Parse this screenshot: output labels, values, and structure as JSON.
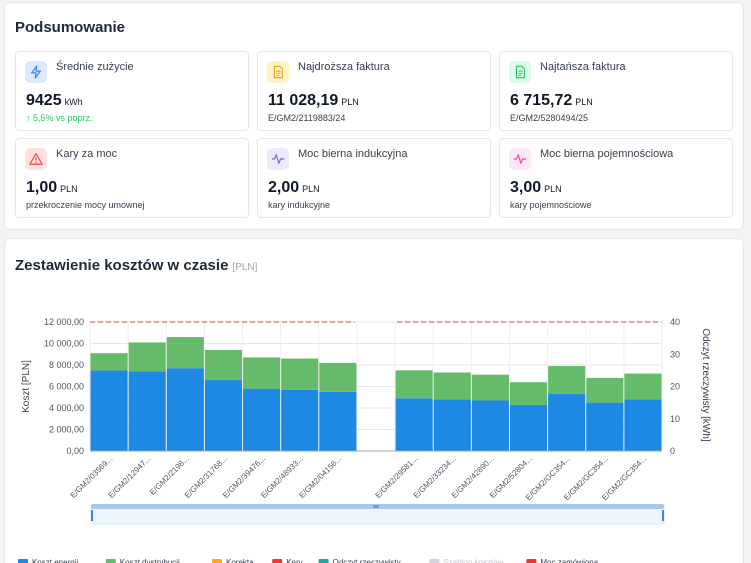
{
  "summary": {
    "title": "Podsumowanie",
    "cards": [
      {
        "label": "Średnie zużycie",
        "value": "9425",
        "unit": "kWh",
        "sub": "↑ 5,5% vs poprz.",
        "icon": "lightning-icon",
        "color": "#3b82f6",
        "bg": "#dbeafe"
      },
      {
        "label": "Najdroższa faktura",
        "value": "11 028,19",
        "unit": "PLN",
        "sub": "E/GM2/2119883/24",
        "icon": "document-icon",
        "color": "#f59e0b",
        "bg": "#fef3c7"
      },
      {
        "label": "Najtańsza faktura",
        "value": "6 715,72",
        "unit": "PLN",
        "sub": "E/GM2/5280494/25",
        "icon": "document-icon",
        "color": "#22c55e",
        "bg": "#dcfce7"
      },
      {
        "label": "Kary za moc",
        "value": "1,00",
        "unit": "PLN",
        "sub": "przekroczenie mocy umownej",
        "icon": "warning-icon",
        "color": "#ef4444",
        "bg": "#fee2e2"
      },
      {
        "label": "Moc bierna indukcyjna",
        "value": "2,00",
        "unit": "PLN",
        "sub": "kary indukcyjne",
        "icon": "pulse-icon",
        "color": "#8b5cf6",
        "bg": "#ede9fe"
      },
      {
        "label": "Moc bierna pojemnościowa",
        "value": "3,00",
        "unit": "PLN",
        "sub": "kary pojemnościowe",
        "icon": "pulse-icon",
        "color": "#ec4899",
        "bg": "#fce7f3"
      }
    ]
  },
  "chart_panel": {
    "title": "Zestawienie kosztów w czasie",
    "unit_tag": "[PLN]"
  },
  "chart_data": {
    "type": "bar",
    "categories": [
      "E/GM2/03569...",
      "E/GM2/12947...",
      "E/GM2/2198...",
      "E/GM2/31768...",
      "E/GM2/39476...",
      "E/GM2/48933...",
      "E/GM2/04156...",
      "",
      "E/GM2/29581...",
      "E/GM2/33234...",
      "E/GM2/42890...",
      "E/GM2/52804...",
      "E/GM2/GC354...",
      "E/GM2/GC354...",
      "E/GM2/GC354..."
    ],
    "series": [
      {
        "name": "Koszt energii",
        "color": "#1e88e5",
        "values": [
          7500,
          7400,
          7700,
          6600,
          5800,
          5700,
          5500,
          0,
          4900,
          4800,
          4700,
          4300,
          5300,
          4500,
          4800
        ]
      },
      {
        "name": "Koszt dystrybucji",
        "color": "#66bb6a",
        "values": [
          1600,
          2700,
          2900,
          2800,
          2900,
          2900,
          2700,
          0,
          2600,
          2500,
          2400,
          2100,
          2600,
          2300,
          2400
        ]
      }
    ],
    "contracted_power": {
      "name": "Moc zamówiona",
      "color": "#e53935",
      "value": 12000
    },
    "ylabel": "Koszt [PLN]",
    "y2label": "Odczyt rzeczywisty [kWh]",
    "ylim": [
      0,
      12000
    ],
    "yticks": [
      "0,00",
      "2 000,00",
      "4 000,00",
      "6 000,00",
      "8 000,00",
      "10 000,00",
      "12 000,00"
    ],
    "y2lim": [
      0,
      40
    ],
    "y2ticks": [
      "0",
      "10",
      "20",
      "30",
      "40"
    ],
    "grid": true,
    "legend_position": "bottom-left",
    "legend": [
      {
        "name": "Koszt energii",
        "color": "#1e88e5"
      },
      {
        "name": "Koszt dystrybucji",
        "color": "#66bb6a"
      },
      {
        "name": "Korekta",
        "color": "#ffa726"
      },
      {
        "name": "Kary",
        "color": "#e53935"
      },
      {
        "name": "Odczyt rzeczywisty",
        "color": "#26a69a"
      },
      {
        "name": "Szablon kosztów",
        "color": "#d1d5db",
        "muted": true
      },
      {
        "name": "Moc zamówiona",
        "color": "#e53935"
      }
    ]
  }
}
